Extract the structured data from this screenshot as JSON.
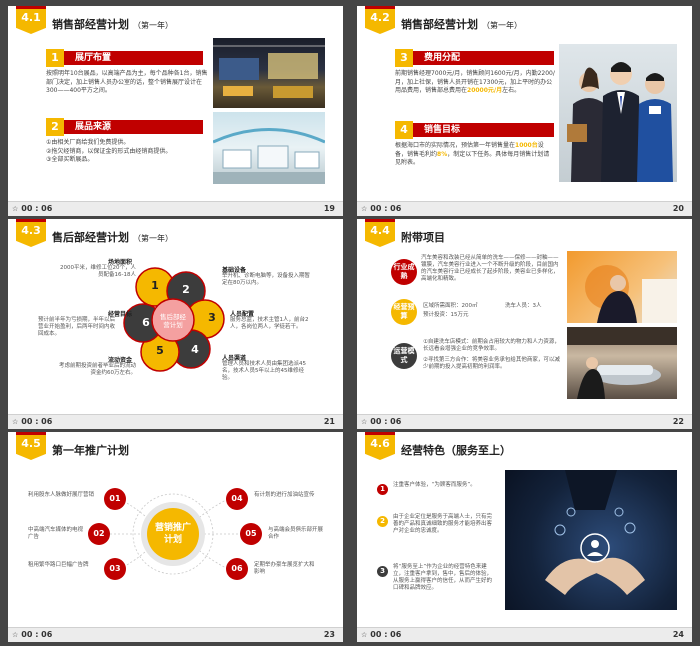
{
  "slides": {
    "s19": {
      "badge": "4.1",
      "title": "销售部经营计划",
      "subtitle": "（第一年）",
      "sec1_num": "1",
      "sec1_title": "展厅布置",
      "sec1_text": "按照明年10台展品，以高端产品为主，每个品种各1台，销售部门决定，加上销售人员办公室的话，整个销售展厅设计在300——400平方之间。",
      "sec2_num": "2",
      "sec2_title": "展品来源",
      "sec2_line1": "①由相关厂商给我们免费提供。",
      "sec2_line2": "②拖欠经销商，以保证金的形式由经销商提供。",
      "sec2_line3": "③全部买断展品。",
      "time": "00 : 06",
      "page": "19"
    },
    "s20": {
      "badge": "4.2",
      "title": "销售部经营计划",
      "subtitle": "（第一年）",
      "sec3_num": "3",
      "sec3_title": "费用分配",
      "sec3_text_a": "前期销售经理7000元/月，销售顾问1600元/月，内勤2200/月，加上社保，销售人员开销在17300元，加上平时的办公用品费用，销售部总费用在",
      "sec3_highlight": "20000元/月",
      "sec3_text_b": "左右。",
      "sec4_num": "4",
      "sec4_title": "销售目标",
      "sec4_text_a": "根据海口市的实际情况，预估第一年销售量在",
      "sec4_hl1": "1000台",
      "sec4_text_b": "设备，销售毛利约",
      "sec4_hl2": "8%",
      "sec4_text_c": "，制定以下任务。具体每月销售计划请见附表。",
      "time": "00 : 06",
      "page": "20"
    },
    "s21": {
      "badge": "4.3",
      "title": "售后部经营计划",
      "subtitle": "（第一年）",
      "center": "售后部经营计划",
      "petals": [
        "1",
        "2",
        "3",
        "4",
        "5",
        "6"
      ],
      "l1_title": "场地面积",
      "l1_text": "2000平米，维修工位20个，人员配备16-18人",
      "l2_title": "基础设备",
      "l2_text": "举升机、诊断电脑等，设备投入期暂定在80万以内。",
      "l3_title": "人员配置",
      "l3_text": "服务总监，技术主管1人，前台2人，各岗位两人，学徒若干。",
      "l4_title": "人员渠道",
      "l4_text": "管理人员和技术人员由集团选派45名，技术人员5年以上的45维修经验。",
      "l5_title": "流动资金",
      "l5_text": "考虑前期投资前者毕业后的流动资金约60万左右。",
      "l6_title": "经营目标",
      "l6_text": "预计前半年为亏损期，半年以后营业开始盈利，后两年时间内收回成本。",
      "time": "00 : 06",
      "page": "21"
    },
    "s22": {
      "badge": "4.4",
      "title": "附带项目",
      "c1": "行业成熟",
      "c1_text": "汽车美容和改装已经从简单的洗车——保修——封釉——镀膜，汽车美容行业进入一个不断升级的阶段，目前国内的汽车美容行业已经成长了起步阶段，美容业已多样化，高端化和精致。",
      "c2": "经营预算",
      "c2_area": "区域所需面积：200㎡",
      "c2_staff": "洗车人员：3人",
      "c2_invest": "预计投资：15万元",
      "c3": "运营模式",
      "c3_line1": "①自建洗车店模式：前期会占用较大的物力和人力资源，长远看会增强企业的竞争效率。",
      "c3_line2": "②寻找第三方合作：将美容业务承包给其他商家，可以减少前期的投入提高初期的利润率。",
      "time": "00 : 06",
      "page": "22"
    },
    "s23": {
      "badge": "4.5",
      "title": "第一年推广计划",
      "center": "营销推广计划",
      "n1": "01",
      "t1": "利用股东人脉做好展厅营销",
      "n2": "02",
      "t2": "中高端汽车媒体的电视广告",
      "n3": "03",
      "t3": "租用繁华路口巨幅广告牌",
      "n4": "04",
      "t4": "有计划的进行加油站宣传",
      "n5": "05",
      "t5": "与高端会员俱乐部开展合作",
      "n6": "06",
      "t6": "定期举办豪车展览扩大和影响",
      "time": "00 : 06",
      "page": "23"
    },
    "s24": {
      "badge": "4.6",
      "title": "经营特色（服务至上）",
      "n1": "1",
      "t1": "注重客户体验，“为顾客而服务”。",
      "n2": "2",
      "t2": "由于企业定位是服务于高端人士，只有完善的产品和真诚细致的服务才能培养出客户对企业的忠诚度。",
      "n3": "3",
      "t3": "将“服务至上”作为企业的经营特色来建立，注重客户拿到，售中，售后的体验，从服务上赢得客户的信任，从而产生好的口碑和品牌效应。",
      "time": "00 : 06",
      "page": "24"
    }
  },
  "colors": {
    "accent": "#c00000",
    "brand_yellow": "#f5b800",
    "background": "#454545"
  }
}
